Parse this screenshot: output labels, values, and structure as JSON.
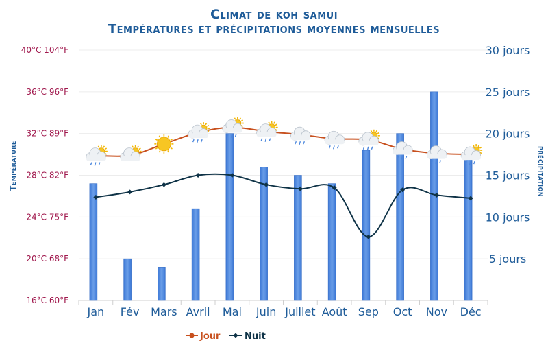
{
  "chart_data": {
    "type": "bar+line",
    "title": "Climat de koh samui",
    "subtitle": "Températures et précipitations moyennes mensuelles",
    "y_left_label": "Température",
    "y_right_label": "précipitation",
    "categories": [
      "Jan",
      "Fév",
      "Mars",
      "Avril",
      "Mai",
      "Juin",
      "Juillet",
      "Août",
      "Sep",
      "Oct",
      "Nov",
      "Déc"
    ],
    "y_left_ticks": [
      {
        "value": 16,
        "label": "16°C 60°F"
      },
      {
        "value": 20,
        "label": "20°C 68°F"
      },
      {
        "value": 24,
        "label": "24°C 75°F"
      },
      {
        "value": 28,
        "label": "28°C 82°F"
      },
      {
        "value": 32,
        "label": "32°C 89°F"
      },
      {
        "value": 36,
        "label": "36°C 96°F"
      },
      {
        "value": 40,
        "label": "40°C 104°F"
      }
    ],
    "y_left_range": [
      16,
      40
    ],
    "y_right_ticks": [
      {
        "value": 5,
        "label": "5 jours"
      },
      {
        "value": 10,
        "label": "10 jours"
      },
      {
        "value": 15,
        "label": "15 jours"
      },
      {
        "value": 20,
        "label": "20 jours"
      },
      {
        "value": 25,
        "label": "25 jours"
      },
      {
        "value": 30,
        "label": "30 jours"
      }
    ],
    "y_right_range": [
      0,
      30
    ],
    "series": [
      {
        "name": "Jour",
        "type": "line",
        "axis": "left",
        "color": "#c8501e",
        "values": [
          29.9,
          29.9,
          31.0,
          32.1,
          32.6,
          32.2,
          31.9,
          31.5,
          31.4,
          30.5,
          30.1,
          30.0
        ]
      },
      {
        "name": "Nuit",
        "type": "line",
        "axis": "left",
        "color": "#0f3347",
        "values": [
          25.9,
          26.4,
          27.1,
          28.0,
          28.0,
          27.1,
          26.7,
          26.8,
          22.1,
          26.6,
          26.1,
          25.8
        ]
      },
      {
        "type": "bar",
        "axis": "right",
        "color": "#4a86dd",
        "values": [
          14,
          5,
          4,
          11,
          20,
          16,
          15,
          14,
          18,
          20,
          25,
          17
        ]
      }
    ],
    "weather_icons": [
      "sun-cloud-rain",
      "sun-cloud",
      "sun",
      "sun-cloud-rain",
      "sun-cloud-rain",
      "sun-cloud-rain",
      "cloud-rain",
      "cloud-rain",
      "sun-cloud-rain",
      "cloud-rain",
      "cloud-rain",
      "sun-cloud-rain"
    ],
    "legend_position": "bottom-center",
    "grid": true
  }
}
